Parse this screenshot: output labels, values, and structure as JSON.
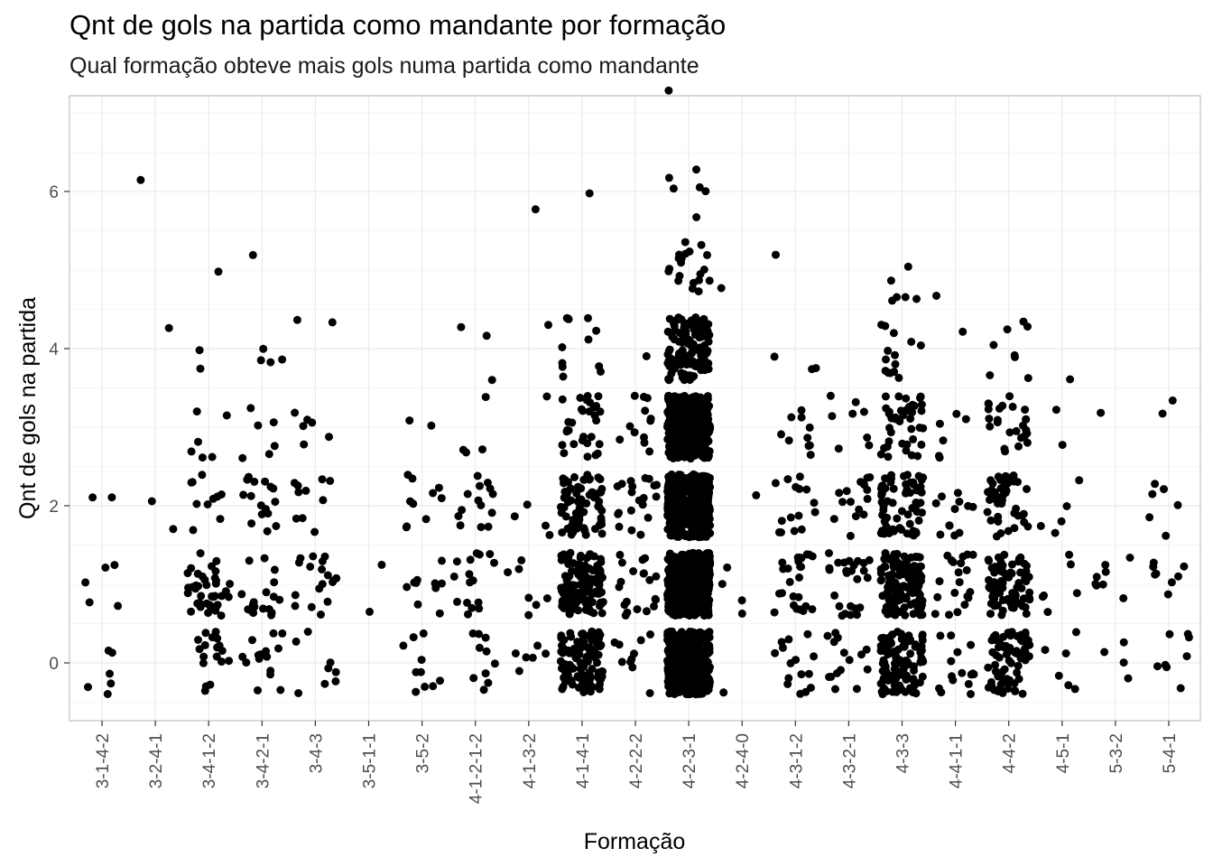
{
  "title": "Qnt de gols na partida como mandante por formação",
  "subtitle": "Qual formação obteve mais gols numa partida como mandante",
  "chart_data": {
    "type": "scatter",
    "jitter": true,
    "title": "Qnt de gols na partida como mandante por formação",
    "subtitle": "Qual formação obteve mais gols numa partida como mandante",
    "xlabel": "Formação",
    "ylabel": "Qnt de gols na partida",
    "ylim": [
      -0.8,
      7.2
    ],
    "yticks": [
      0,
      2,
      4,
      6
    ],
    "grid": true,
    "point_color": "#000000",
    "categories": [
      "3-1-4-2",
      "3-2-4-1",
      "3-4-1-2",
      "3-4-2-1",
      "3-4-3",
      "3-5-1-1",
      "3-5-2",
      "4-1-2-1-2",
      "4-1-3-2",
      "4-1-4-1",
      "4-2-2-2",
      "4-2-3-1",
      "4-2-4-0",
      "4-3-1-2",
      "4-3-2-1",
      "4-3-3",
      "4-4-1-1",
      "4-4-2",
      "4-5-1",
      "5-3-2",
      "5-4-1"
    ],
    "counts": [
      {
        "formation": "3-1-4-2",
        "goals": {
          "0": 6,
          "1": 5,
          "2": 2
        }
      },
      {
        "formation": "3-2-4-1",
        "goals": {
          "2": 2,
          "4": 1,
          "6": 1
        }
      },
      {
        "formation": "3-4-1-2",
        "goals": {
          "0": 18,
          "1": 40,
          "2": 10,
          "3": 6,
          "4": 2,
          "5": 1
        }
      },
      {
        "formation": "3-4-2-1",
        "goals": {
          "0": 16,
          "1": 18,
          "2": 16,
          "3": 6,
          "4": 4,
          "5": 1
        }
      },
      {
        "formation": "3-4-3",
        "goals": {
          "0": 8,
          "1": 18,
          "2": 10,
          "3": 6,
          "4": 2
        }
      },
      {
        "formation": "3-5-1-1",
        "goals": {
          "1": 2
        }
      },
      {
        "formation": "3-5-2",
        "goals": {
          "0": 10,
          "1": 10,
          "2": 10,
          "3": 2
        }
      },
      {
        "formation": "4-1-2-1-2",
        "goals": {
          "0": 10,
          "1": 16,
          "2": 14,
          "3": 4,
          "4": 3
        }
      },
      {
        "formation": "4-1-3-2",
        "goals": {
          "0": 6,
          "1": 7,
          "2": 4,
          "3": 1,
          "4": 1,
          "6": 1
        }
      },
      {
        "formation": "4-1-4-1",
        "goals": {
          "0": 100,
          "1": 120,
          "2": 70,
          "3": 30,
          "4": 12,
          "6": 1
        }
      },
      {
        "formation": "4-2-2-2",
        "goals": {
          "0": 10,
          "1": 20,
          "2": 20,
          "3": 12,
          "4": 1
        }
      },
      {
        "formation": "4-2-3-1",
        "goals": {
          "0": 420,
          "1": 560,
          "2": 420,
          "3": 320,
          "4": 120,
          "5": 20,
          "6": 6,
          "7": 1
        }
      },
      {
        "formation": "4-2-4-0",
        "goals": {
          "0": 1,
          "1": 4,
          "2": 1,
          "5": 1
        }
      },
      {
        "formation": "4-3-1-2",
        "goals": {
          "0": 15,
          "1": 25,
          "2": 15,
          "3": 10,
          "4": 3,
          "5": 1
        }
      },
      {
        "formation": "4-3-2-1",
        "goals": {
          "0": 15,
          "1": 25,
          "2": 15,
          "3": 8
        }
      },
      {
        "formation": "4-3-3",
        "goals": {
          "0": 110,
          "1": 130,
          "2": 65,
          "3": 40,
          "4": 14,
          "5": 6
        }
      },
      {
        "formation": "4-4-1-1",
        "goals": {
          "0": 15,
          "1": 20,
          "2": 12,
          "3": 6,
          "4": 1,
          "5": 1
        }
      },
      {
        "formation": "4-4-2",
        "goals": {
          "0": 70,
          "1": 80,
          "2": 45,
          "3": 25,
          "4": 8
        }
      },
      {
        "formation": "4-5-1",
        "goals": {
          "0": 6,
          "1": 6,
          "2": 5,
          "3": 2,
          "4": 1
        }
      },
      {
        "formation": "5-3-2",
        "goals": {
          "0": 4,
          "1": 8,
          "3": 1
        }
      },
      {
        "formation": "5-4-1",
        "goals": {
          "0": 8,
          "1": 8,
          "2": 6,
          "3": 2
        }
      }
    ]
  }
}
